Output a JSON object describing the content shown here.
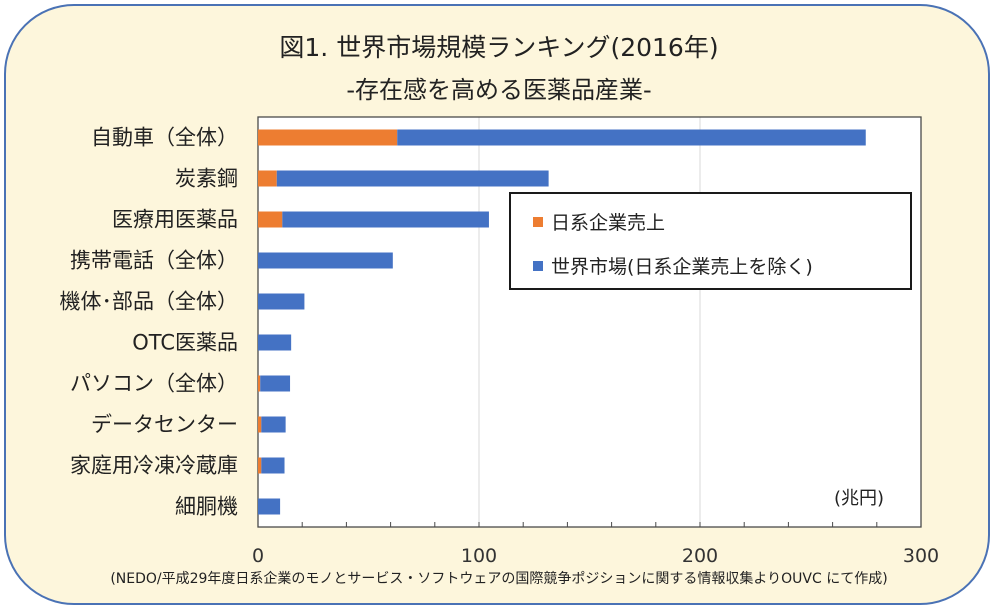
{
  "title": "図1. 世界市場規模ランキング(2016年)",
  "subtitle": "-存在感を高める医薬品産業-",
  "unit_label": "(兆円)",
  "source_note": "(NEDO/平成29年度日系企業のモノとサービス・ソフトウェアの国際競争ポジションに関する情報収集よりOUVC にて作成)",
  "colors": {
    "japanese": "#ed7d31",
    "world": "#4472c4",
    "frame": "#4a72b5",
    "panel": "#fdf6dc"
  },
  "chart_data": {
    "type": "bar",
    "orientation": "horizontal",
    "stacked": true,
    "categories": [
      "自動車（全体）",
      "炭素鋼",
      "医療用医薬品",
      "携帯電話（全体）",
      "機体･部品（全体）",
      "OTC医薬品",
      "パソコン（全体）",
      "データセンター",
      "家庭用冷凍冷蔵庫",
      "細胴機"
    ],
    "series": [
      {
        "name": "日系企業売上",
        "values": [
          63,
          8.5,
          11,
          0,
          0,
          0,
          1,
          1.5,
          1.5,
          0
        ]
      },
      {
        "name": "世界市場(日系企業売上を除く)",
        "values": [
          212,
          123,
          93.5,
          61,
          21,
          15,
          13.5,
          11,
          10.5,
          10
        ]
      }
    ],
    "xlim": [
      0,
      300
    ],
    "xticks": [
      0,
      100,
      200,
      300
    ],
    "grid": true,
    "legend_position": "right-inside"
  }
}
